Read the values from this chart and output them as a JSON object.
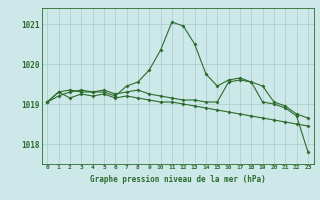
{
  "title": "Graphe pression niveau de la mer (hPa)",
  "background_color": "#cce8e8",
  "grid_color": "#aacccc",
  "line_color": "#2d6b2d",
  "ylim": [
    1017.5,
    1021.4
  ],
  "yticks": [
    1018,
    1019,
    1020,
    1021
  ],
  "ytick_labels": [
    "1018",
    "1019",
    "1020",
    "1021"
  ],
  "line1": [
    1019.05,
    1019.3,
    1019.15,
    1019.25,
    1019.2,
    1019.25,
    1019.15,
    1019.2,
    1019.15,
    1019.1,
    1019.05,
    1019.05,
    1019.0,
    1018.95,
    1018.9,
    1018.85,
    1018.8,
    1018.75,
    1018.7,
    1018.65,
    1018.6,
    1018.55,
    1018.5,
    1018.45
  ],
  "line2": [
    1019.05,
    1019.2,
    1019.3,
    1019.35,
    1019.3,
    1019.3,
    1019.2,
    1019.45,
    1019.55,
    1019.85,
    1020.35,
    1021.05,
    1020.95,
    1020.5,
    1019.75,
    1019.45,
    1019.6,
    1019.65,
    1019.55,
    1019.45,
    1019.05,
    1018.95,
    1018.75,
    1018.65
  ],
  "line3": [
    1019.05,
    1019.3,
    1019.35,
    1019.3,
    1019.3,
    1019.35,
    1019.25,
    1019.3,
    1019.35,
    1019.25,
    1019.2,
    1019.15,
    1019.1,
    1019.1,
    1019.05,
    1019.05,
    1019.55,
    1019.6,
    1019.55,
    1019.05,
    1019.0,
    1018.9,
    1018.7,
    1017.8
  ]
}
